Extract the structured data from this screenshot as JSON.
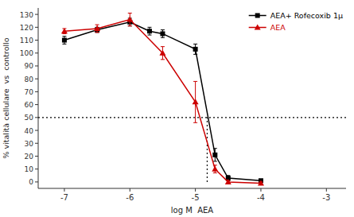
{
  "chart_data": {
    "type": "line",
    "xlabel": "log M  AEA",
    "ylabel": "% vitalità cellulare  vs  controllo",
    "xlim": [
      -7.4,
      -2.7
    ],
    "ylim": [
      -5,
      135
    ],
    "xticks": [
      -7,
      -6,
      -5,
      -4,
      -3
    ],
    "yticks": [
      0,
      10,
      20,
      30,
      40,
      50,
      60,
      70,
      80,
      90,
      100,
      110,
      120,
      130
    ],
    "grid": false,
    "legend": "upper right",
    "series": [
      {
        "name": "AEA+ Rofecoxib 1μ",
        "color": "#000000",
        "marker": "square",
        "x": [
          -7,
          -6.5,
          -6,
          -5.7,
          -5.5,
          -5,
          -4.7,
          -4.5,
          -4
        ],
        "values": [
          110,
          118,
          124,
          117,
          115,
          103,
          21,
          3,
          1
        ],
        "errors": [
          3,
          2,
          3,
          3,
          3,
          4,
          5,
          2,
          1
        ]
      },
      {
        "name": "AEA",
        "color": "#cc0000",
        "marker": "triangle",
        "x": [
          -7,
          -6.5,
          -6,
          -5.5,
          -5,
          -4.7,
          -4.5,
          -4
        ],
        "values": [
          117,
          119,
          126,
          100,
          62,
          10,
          0,
          -1
        ],
        "errors": [
          2,
          3,
          5,
          5,
          16,
          3,
          1,
          1
        ]
      }
    ],
    "hline": {
      "y": 50,
      "line_style": "dotted"
    },
    "vline": {
      "x": -4.82,
      "y0": 0,
      "y1": 50,
      "line_style": "dotted"
    }
  }
}
